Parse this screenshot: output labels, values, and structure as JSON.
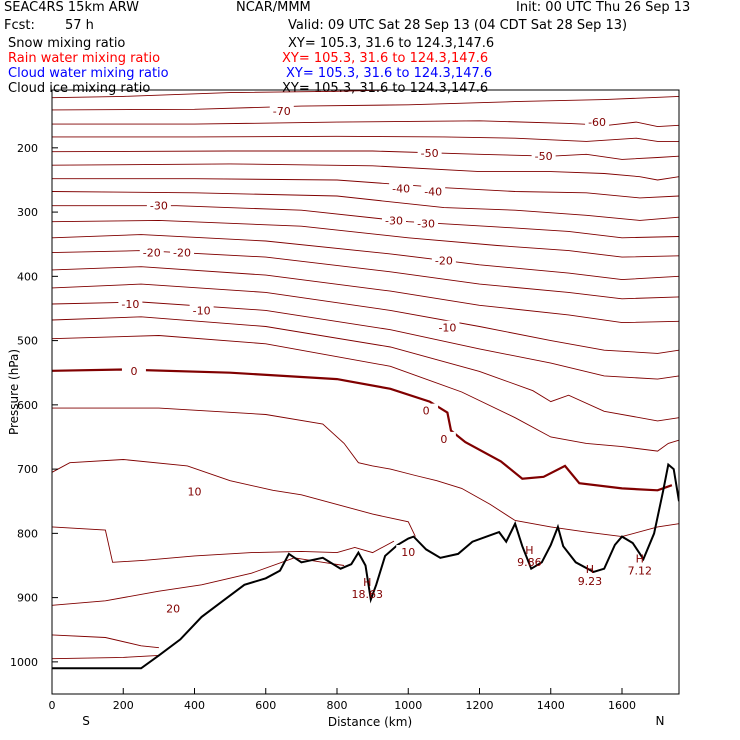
{
  "header": {
    "model": "SEAC4RS 15km ARW",
    "center": "NCAR/MMM",
    "init": "Init: 00 UTC Thu 26 Sep 13",
    "fcst_label": "Fcst:",
    "fcst_value": "57 h",
    "valid": "Valid: 09 UTC Sat 28 Sep 13 (04 CDT Sat 28 Sep 13)"
  },
  "fields": [
    {
      "label": "Snow mixing ratio",
      "xy": "XY= 105.3, 31.6 to 124.3,147.6",
      "color": "#000000"
    },
    {
      "label": "Rain water mixing ratio",
      "xy": "XY= 105.3, 31.6 to 124.3,147.6",
      "color": "#ff0000"
    },
    {
      "label": "Cloud water mixing ratio",
      "xy": "XY= 105.3, 31.6 to 124.3,147.6",
      "color": "#0000ff"
    },
    {
      "label": "Cloud ice mixing ratio",
      "xy": "XY= 105.3, 31.6 to 124.3,147.6",
      "color": "#000000"
    }
  ],
  "chart_data": {
    "type": "cross-section contour",
    "xlabel": "Distance (km)",
    "ylabel": "Pressure (hPa)",
    "xlim": [
      0,
      1760
    ],
    "ylim": [
      1050,
      110
    ],
    "x_ticks": [
      "0",
      "200",
      "400",
      "600",
      "800",
      "1000",
      "1200",
      "1400",
      "1600"
    ],
    "y_ticks": [
      "200",
      "300",
      "400",
      "500",
      "600",
      "700",
      "800",
      "900",
      "1000"
    ],
    "x_tick_values": [
      0,
      200,
      400,
      600,
      800,
      1000,
      1200,
      1400,
      1600
    ],
    "y_tick_values": [
      200,
      300,
      400,
      500,
      600,
      700,
      800,
      900,
      1000
    ],
    "left_end": "S",
    "right_end": "N",
    "contour_color": "#800000",
    "terrain_color": "#000000",
    "isotherm_labels": [
      "-70",
      "-60",
      "-50",
      "-50",
      "-40",
      "-40",
      "-30",
      "-30",
      "-30",
      "-20",
      "-20",
      "-20",
      "-10",
      "-10",
      "-10",
      "0",
      "0",
      "0",
      "10",
      "10",
      "20"
    ],
    "isotherm_label_points": [
      {
        "x": 645,
        "p": 143
      },
      {
        "x": 1530,
        "p": 160
      },
      {
        "x": 1060,
        "p": 208
      },
      {
        "x": 1380,
        "p": 213
      },
      {
        "x": 980,
        "p": 263
      },
      {
        "x": 1070,
        "p": 268
      },
      {
        "x": 300,
        "p": 290
      },
      {
        "x": 960,
        "p": 313
      },
      {
        "x": 1050,
        "p": 318
      },
      {
        "x": 280,
        "p": 363
      },
      {
        "x": 365,
        "p": 363
      },
      {
        "x": 1100,
        "p": 375
      },
      {
        "x": 220,
        "p": 443
      },
      {
        "x": 420,
        "p": 453
      },
      {
        "x": 1110,
        "p": 480
      },
      {
        "x": 230,
        "p": 547
      },
      {
        "x": 1050,
        "p": 609
      },
      {
        "x": 1100,
        "p": 653
      },
      {
        "x": 400,
        "p": 735
      },
      {
        "x": 1000,
        "p": 829
      },
      {
        "x": 340,
        "p": 917
      }
    ],
    "highs": [
      {
        "label": "H",
        "value": "18.63",
        "x": 885,
        "p": 882
      },
      {
        "label": "H",
        "value": "9.86",
        "x": 1340,
        "p": 832
      },
      {
        "label": "H",
        "value": "9.23",
        "x": 1510,
        "p": 862
      },
      {
        "label": "H",
        "value": "7.12",
        "x": 1650,
        "p": 845
      }
    ],
    "terrain": [
      [
        0,
        1010
      ],
      [
        250,
        1010
      ],
      [
        300,
        990
      ],
      [
        360,
        965
      ],
      [
        420,
        930
      ],
      [
        480,
        905
      ],
      [
        540,
        880
      ],
      [
        600,
        870
      ],
      [
        640,
        858
      ],
      [
        665,
        832
      ],
      [
        700,
        845
      ],
      [
        760,
        838
      ],
      [
        810,
        855
      ],
      [
        840,
        848
      ],
      [
        860,
        830
      ],
      [
        880,
        850
      ],
      [
        895,
        903
      ],
      [
        910,
        880
      ],
      [
        935,
        835
      ],
      [
        970,
        818
      ],
      [
        1000,
        808
      ],
      [
        1015,
        805
      ],
      [
        1050,
        825
      ],
      [
        1090,
        838
      ],
      [
        1140,
        832
      ],
      [
        1180,
        813
      ],
      [
        1220,
        805
      ],
      [
        1255,
        798
      ],
      [
        1275,
        813
      ],
      [
        1300,
        785
      ],
      [
        1320,
        820
      ],
      [
        1345,
        855
      ],
      [
        1375,
        845
      ],
      [
        1400,
        818
      ],
      [
        1420,
        790
      ],
      [
        1435,
        820
      ],
      [
        1470,
        845
      ],
      [
        1520,
        860
      ],
      [
        1550,
        855
      ],
      [
        1580,
        818
      ],
      [
        1600,
        805
      ],
      [
        1630,
        815
      ],
      [
        1660,
        840
      ],
      [
        1690,
        800
      ],
      [
        1715,
        735
      ],
      [
        1730,
        693
      ],
      [
        1745,
        700
      ],
      [
        1760,
        750
      ]
    ],
    "isotherms": [
      {
        "v": -70,
        "pts": [
          [
            0,
            122
          ],
          [
            200,
            120
          ],
          [
            500,
            114
          ],
          [
            800,
            112
          ],
          [
            1100,
            108
          ],
          [
            1300,
            108
          ]
        ]
      },
      {
        "v": -70,
        "pts": [
          [
            0,
            141
          ],
          [
            400,
            140
          ],
          [
            700,
            135
          ],
          [
            1000,
            133
          ],
          [
            1300,
            128
          ],
          [
            1550,
            125
          ],
          [
            1760,
            120
          ]
        ]
      },
      {
        "v": -60,
        "pts": [
          [
            0,
            163
          ],
          [
            400,
            163
          ],
          [
            800,
            160
          ],
          [
            1200,
            158
          ],
          [
            1450,
            162
          ],
          [
            1560,
            165
          ],
          [
            1640,
            160
          ],
          [
            1700,
            167
          ],
          [
            1760,
            165
          ]
        ]
      },
      {
        "v": -50,
        "pts": [
          [
            0,
            183
          ],
          [
            400,
            183
          ],
          [
            800,
            182
          ],
          [
            1100,
            183
          ],
          [
            1300,
            185
          ],
          [
            1500,
            190
          ],
          [
            1640,
            185
          ],
          [
            1700,
            190
          ],
          [
            1760,
            190
          ]
        ]
      },
      {
        "v": -50,
        "pts": [
          [
            0,
            206
          ],
          [
            500,
            205
          ],
          [
            900,
            205
          ],
          [
            1200,
            210
          ],
          [
            1400,
            213
          ],
          [
            1500,
            210
          ],
          [
            1600,
            218
          ],
          [
            1700,
            215
          ],
          [
            1760,
            213
          ]
        ]
      },
      {
        "v": -40,
        "pts": [
          [
            0,
            227
          ],
          [
            500,
            225
          ],
          [
            900,
            228
          ],
          [
            1200,
            237
          ],
          [
            1400,
            237
          ],
          [
            1550,
            240
          ],
          [
            1650,
            245
          ],
          [
            1700,
            250
          ],
          [
            1760,
            245
          ]
        ]
      },
      {
        "v": -40,
        "pts": [
          [
            0,
            248
          ],
          [
            400,
            248
          ],
          [
            800,
            250
          ],
          [
            1100,
            262
          ],
          [
            1300,
            268
          ],
          [
            1500,
            270
          ],
          [
            1650,
            278
          ],
          [
            1760,
            275
          ]
        ]
      },
      {
        "v": -30,
        "pts": [
          [
            0,
            268
          ],
          [
            400,
            270
          ],
          [
            800,
            275
          ],
          [
            1100,
            293
          ],
          [
            1300,
            297
          ],
          [
            1500,
            305
          ],
          [
            1650,
            313
          ],
          [
            1760,
            308
          ]
        ]
      },
      {
        "v": -30,
        "pts": [
          [
            0,
            290
          ],
          [
            350,
            290
          ],
          [
            700,
            297
          ],
          [
            1000,
            315
          ],
          [
            1250,
            323
          ],
          [
            1450,
            330
          ],
          [
            1600,
            340
          ],
          [
            1760,
            338
          ]
        ]
      },
      {
        "v": -30,
        "pts": [
          [
            0,
            315
          ],
          [
            300,
            313
          ],
          [
            700,
            322
          ],
          [
            1000,
            340
          ],
          [
            1250,
            352
          ],
          [
            1450,
            360
          ],
          [
            1600,
            370
          ],
          [
            1760,
            368
          ]
        ]
      },
      {
        "v": -20,
        "pts": [
          [
            0,
            340
          ],
          [
            250,
            335
          ],
          [
            600,
            345
          ],
          [
            950,
            365
          ],
          [
            1200,
            382
          ],
          [
            1450,
            395
          ],
          [
            1600,
            405
          ],
          [
            1760,
            400
          ]
        ]
      },
      {
        "v": -20,
        "pts": [
          [
            0,
            363
          ],
          [
            250,
            360
          ],
          [
            600,
            370
          ],
          [
            950,
            393
          ],
          [
            1200,
            412
          ],
          [
            1450,
            425
          ],
          [
            1600,
            435
          ],
          [
            1760,
            432
          ]
        ]
      },
      {
        "v": -20,
        "pts": [
          [
            0,
            390
          ],
          [
            250,
            385
          ],
          [
            600,
            398
          ],
          [
            950,
            423
          ],
          [
            1200,
            445
          ],
          [
            1450,
            460
          ],
          [
            1600,
            472
          ],
          [
            1760,
            470
          ]
        ]
      },
      {
        "v": -10,
        "pts": [
          [
            0,
            418
          ],
          [
            250,
            412
          ],
          [
            600,
            425
          ],
          [
            950,
            453
          ],
          [
            1200,
            478
          ],
          [
            1400,
            500
          ],
          [
            1550,
            515
          ],
          [
            1700,
            520
          ],
          [
            1760,
            515
          ]
        ]
      },
      {
        "v": -10,
        "pts": [
          [
            0,
            443
          ],
          [
            250,
            440
          ],
          [
            600,
            453
          ],
          [
            950,
            483
          ],
          [
            1200,
            513
          ],
          [
            1400,
            535
          ],
          [
            1550,
            555
          ],
          [
            1700,
            560
          ],
          [
            1760,
            555
          ]
        ]
      },
      {
        "v": -10,
        "pts": [
          [
            0,
            468
          ],
          [
            250,
            463
          ],
          [
            600,
            478
          ],
          [
            950,
            510
          ],
          [
            1200,
            548
          ],
          [
            1350,
            578
          ],
          [
            1400,
            595
          ],
          [
            1450,
            585
          ],
          [
            1550,
            610
          ],
          [
            1700,
            625
          ],
          [
            1760,
            620
          ]
        ]
      },
      {
        "v": 0,
        "pts": [
          [
            0,
            497
          ],
          [
            300,
            492
          ],
          [
            600,
            505
          ],
          [
            950,
            540
          ],
          [
            1150,
            580
          ],
          [
            1300,
            620
          ],
          [
            1400,
            650
          ],
          [
            1500,
            660
          ],
          [
            1600,
            665
          ],
          [
            1700,
            672
          ],
          [
            1730,
            660
          ],
          [
            1760,
            655
          ]
        ]
      },
      {
        "v": 0,
        "pts": [
          [
            0,
            547
          ],
          [
            200,
            545
          ],
          [
            500,
            550
          ],
          [
            800,
            560
          ],
          [
            950,
            575
          ],
          [
            1060,
            595
          ],
          [
            1110,
            612
          ],
          [
            1120,
            640
          ],
          [
            1160,
            658
          ],
          [
            1260,
            688
          ],
          [
            1320,
            715
          ],
          [
            1380,
            712
          ],
          [
            1440,
            695
          ],
          [
            1480,
            722
          ],
          [
            1600,
            730
          ],
          [
            1700,
            733
          ],
          [
            1740,
            725
          ]
        ],
        "bold": true
      },
      {
        "v": 0,
        "pts": [
          [
            0,
            605
          ],
          [
            300,
            605
          ],
          [
            600,
            615
          ],
          [
            760,
            630
          ],
          [
            820,
            660
          ],
          [
            860,
            690
          ],
          [
            900,
            695
          ],
          [
            950,
            700
          ],
          [
            1020,
            710
          ],
          [
            1080,
            718
          ],
          [
            1150,
            730
          ],
          [
            1230,
            755
          ],
          [
            1300,
            780
          ],
          [
            1400,
            790
          ],
          [
            1500,
            798
          ],
          [
            1600,
            805
          ],
          [
            1700,
            790
          ],
          [
            1760,
            785
          ]
        ]
      },
      {
        "v": 10,
        "pts": [
          [
            0,
            705
          ],
          [
            50,
            690
          ],
          [
            200,
            685
          ],
          [
            380,
            695
          ],
          [
            500,
            718
          ],
          [
            620,
            733
          ],
          [
            700,
            740
          ],
          [
            800,
            755
          ],
          [
            900,
            770
          ],
          [
            1000,
            782
          ],
          [
            1020,
            805
          ]
        ]
      },
      {
        "v": 10,
        "pts": [
          [
            0,
            790
          ],
          [
            150,
            795
          ],
          [
            170,
            845
          ],
          [
            260,
            842
          ],
          [
            400,
            835
          ],
          [
            560,
            830
          ],
          [
            700,
            828
          ],
          [
            800,
            830
          ],
          [
            850,
            822
          ],
          [
            900,
            830
          ],
          [
            960,
            812
          ]
        ]
      },
      {
        "v": 20,
        "pts": [
          [
            0,
            912
          ],
          [
            150,
            905
          ],
          [
            300,
            890
          ],
          [
            420,
            880
          ],
          [
            560,
            862
          ],
          [
            680,
            838
          ],
          [
            760,
            845
          ],
          [
            820,
            850
          ]
        ]
      },
      {
        "v": 20,
        "pts": [
          [
            0,
            958
          ],
          [
            150,
            962
          ],
          [
            250,
            975
          ],
          [
            300,
            978
          ]
        ]
      },
      {
        "v": 20,
        "pts": [
          [
            0,
            995
          ],
          [
            200,
            993
          ],
          [
            300,
            990
          ]
        ]
      }
    ]
  }
}
